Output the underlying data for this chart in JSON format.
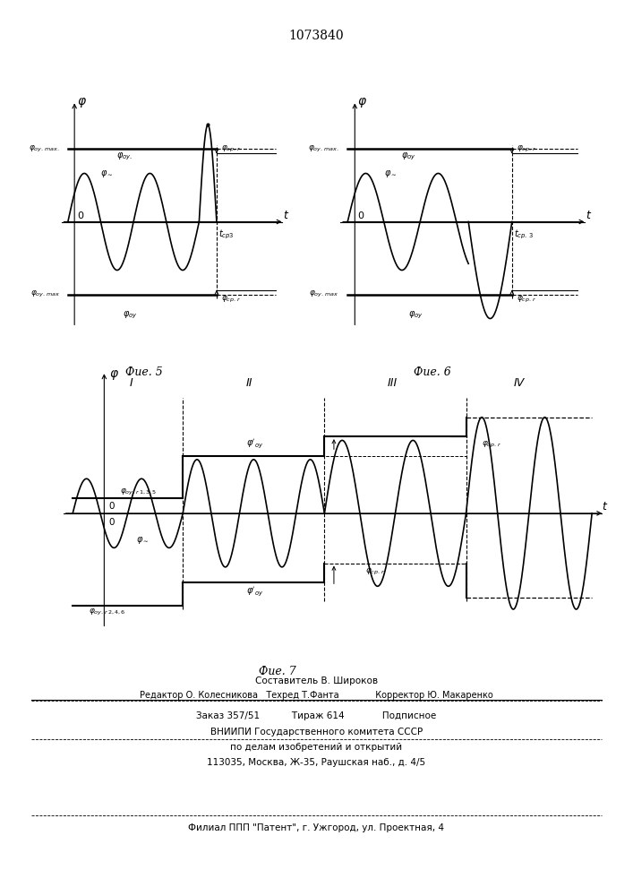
{
  "title": "1073840",
  "fig5_title": "Фие. 5",
  "fig6_title": "Фие. 6",
  "fig7_title": "Фие. 7",
  "footer_line1": "Составитель В. Широков",
  "footer_line2": "Редактор О. Колесникова   Техред Т.Фанта             Корректор Ю. Макаренко",
  "footer_line3": "Заказ 357/51           Тираж 614             Подписное",
  "footer_line4": "ВНИИПИ Государственного комитета СССР",
  "footer_line5": "по делам изобретений и открытий",
  "footer_line6": "113035, Москва, Ж-35, Раушская наб., д. 4/5",
  "footer_line7": "Филиал ППП \"Патент\", г. Ужгород, ул. Проектная, 4"
}
